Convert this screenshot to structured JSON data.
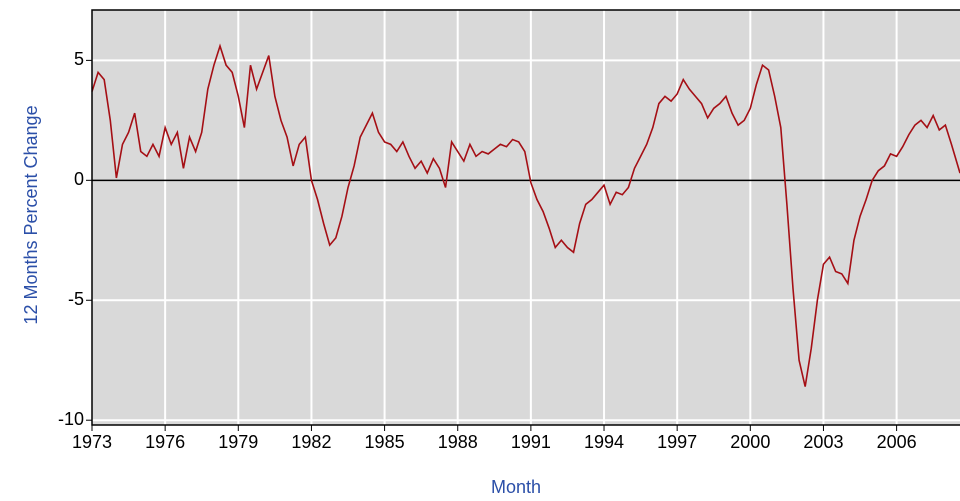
{
  "chart_data": {
    "type": "line",
    "y_label": "12 Months Percent Change",
    "x_label": "Month",
    "color": "#a50f15",
    "grid": true,
    "xlim": [
      1973,
      2008.6
    ],
    "xticks": [
      1973,
      1976,
      1979,
      1982,
      1985,
      1988,
      1991,
      1994,
      1997,
      2000,
      2003,
      2006
    ],
    "ylim": [
      -10.2,
      7.1
    ],
    "yticks": [
      5,
      0,
      -5,
      -10
    ],
    "x": [
      1973.0,
      1973.25,
      1973.5,
      1973.75,
      1974.0,
      1974.25,
      1974.5,
      1974.75,
      1975.0,
      1975.25,
      1975.5,
      1975.75,
      1976.0,
      1976.25,
      1976.5,
      1976.75,
      1977.0,
      1977.25,
      1977.5,
      1977.75,
      1978.0,
      1978.25,
      1978.5,
      1978.75,
      1979.0,
      1979.25,
      1979.5,
      1979.75,
      1980.0,
      1980.25,
      1980.5,
      1980.75,
      1981.0,
      1981.25,
      1981.5,
      1981.75,
      1982.0,
      1982.25,
      1982.5,
      1982.75,
      1983.0,
      1983.25,
      1983.5,
      1983.75,
      1984.0,
      1984.25,
      1984.5,
      1984.75,
      1985.0,
      1985.25,
      1985.5,
      1985.75,
      1986.0,
      1986.25,
      1986.5,
      1986.75,
      1987.0,
      1987.25,
      1987.5,
      1987.75,
      1988.0,
      1988.25,
      1988.5,
      1988.75,
      1989.0,
      1989.25,
      1989.5,
      1989.75,
      1990.0,
      1990.25,
      1990.5,
      1990.75,
      1991.0,
      1991.25,
      1991.5,
      1991.75,
      1992.0,
      1992.25,
      1992.5,
      1992.75,
      1993.0,
      1993.25,
      1993.5,
      1993.75,
      1994.0,
      1994.25,
      1994.5,
      1994.75,
      1995.0,
      1995.25,
      1995.5,
      1995.75,
      1996.0,
      1996.25,
      1996.5,
      1996.75,
      1997.0,
      1997.25,
      1997.5,
      1997.75,
      1998.0,
      1998.25,
      1998.5,
      1998.75,
      1999.0,
      1999.25,
      1999.5,
      1999.75,
      2000.0,
      2000.25,
      2000.5,
      2000.75,
      2001.0,
      2001.25,
      2001.5,
      2001.75,
      2002.0,
      2002.25,
      2002.5,
      2002.75,
      2003.0,
      2003.25,
      2003.5,
      2003.75,
      2004.0,
      2004.25,
      2004.5,
      2004.75,
      2005.0,
      2005.25,
      2005.5,
      2005.75,
      2006.0,
      2006.25,
      2006.5,
      2006.75,
      2007.0,
      2007.25,
      2007.5,
      2007.75,
      2008.0,
      2008.25,
      2008.6
    ],
    "values": [
      3.7,
      4.5,
      4.2,
      2.5,
      0.1,
      1.5,
      2.0,
      2.8,
      1.2,
      1.0,
      1.5,
      1.0,
      2.2,
      1.5,
      2.0,
      0.5,
      1.8,
      1.2,
      2.0,
      3.8,
      4.8,
      5.6,
      4.8,
      4.5,
      3.5,
      2.2,
      4.8,
      3.8,
      4.5,
      5.2,
      3.5,
      2.5,
      1.8,
      0.6,
      1.5,
      1.8,
      0.0,
      -0.8,
      -1.8,
      -2.7,
      -2.4,
      -1.5,
      -0.3,
      0.6,
      1.8,
      2.3,
      2.8,
      2.0,
      1.6,
      1.5,
      1.2,
      1.6,
      1.0,
      0.5,
      0.8,
      0.3,
      0.9,
      0.5,
      -0.3,
      1.6,
      1.2,
      0.8,
      1.5,
      1.0,
      1.2,
      1.1,
      1.3,
      1.5,
      1.4,
      1.7,
      1.6,
      1.2,
      -0.1,
      -0.8,
      -1.3,
      -2.0,
      -2.8,
      -2.5,
      -2.8,
      -3.0,
      -1.8,
      -1.0,
      -0.8,
      -0.5,
      -0.2,
      -1.0,
      -0.5,
      -0.6,
      -0.3,
      0.5,
      1.0,
      1.5,
      2.2,
      3.2,
      3.5,
      3.3,
      3.6,
      4.2,
      3.8,
      3.5,
      3.2,
      2.6,
      3.0,
      3.2,
      3.5,
      2.8,
      2.3,
      2.5,
      3.0,
      4.0,
      4.8,
      4.6,
      3.5,
      2.2,
      -1.0,
      -4.5,
      -7.5,
      -8.6,
      -7.0,
      -5.0,
      -3.5,
      -3.2,
      -3.8,
      -3.9,
      -4.3,
      -2.5,
      -1.5,
      -0.8,
      0.0,
      0.4,
      0.6,
      1.1,
      1.0,
      1.4,
      1.9,
      2.3,
      2.5,
      2.2,
      2.7,
      2.1,
      2.3,
      1.5,
      0.3
    ]
  }
}
